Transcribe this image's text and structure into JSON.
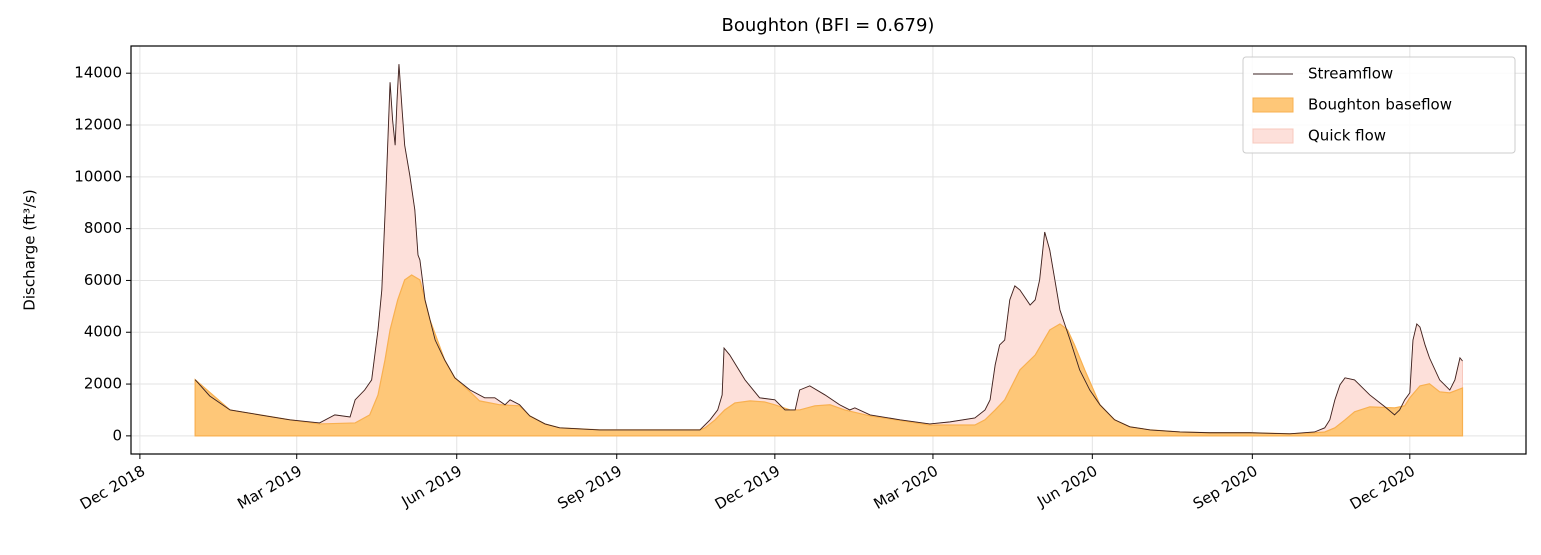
{
  "chart_data": {
    "type": "line",
    "title": "Boughton (BFI = 0.679)",
    "ylabel": "Discharge (ft³/s)",
    "xlim": [
      2018.901,
      2021.098
    ],
    "ylim": [
      -700,
      15050
    ],
    "xticks": [
      {
        "value": 2018.915,
        "label": "Dec 2018"
      },
      {
        "value": 2019.162,
        "label": "Mar 2019"
      },
      {
        "value": 2019.414,
        "label": "Jun 2019"
      },
      {
        "value": 2019.666,
        "label": "Sep 2019"
      },
      {
        "value": 2019.915,
        "label": "Dec 2019"
      },
      {
        "value": 2020.164,
        "label": "Mar 2020"
      },
      {
        "value": 2020.415,
        "label": "Jun 2020"
      },
      {
        "value": 2020.667,
        "label": "Sep 2020"
      },
      {
        "value": 2020.915,
        "label": "Dec 2020"
      }
    ],
    "yticks": [
      0,
      2000,
      4000,
      6000,
      8000,
      10000,
      12000,
      14000
    ],
    "grid": true,
    "legend": "upper right",
    "series": [
      {
        "name": "Streamflow",
        "color": "#3b2220",
        "x": [
          2019.002,
          2019.025,
          2019.057,
          2019.104,
          2019.151,
          2019.198,
          2019.222,
          2019.246,
          2019.254,
          2019.269,
          2019.28,
          2019.29,
          2019.296,
          2019.302,
          2019.309,
          2019.313,
          2019.317,
          2019.32,
          2019.323,
          2019.328,
          2019.332,
          2019.34,
          2019.348,
          2019.353,
          2019.356,
          2019.364,
          2019.372,
          2019.38,
          2019.395,
          2019.411,
          2019.435,
          2019.458,
          2019.474,
          2019.49,
          2019.498,
          2019.513,
          2019.529,
          2019.553,
          2019.576,
          2019.639,
          2019.718,
          2019.797,
          2019.813,
          2019.825,
          2019.832,
          2019.835,
          2019.844,
          2019.868,
          2019.891,
          2019.915,
          2019.931,
          2019.947,
          2019.954,
          2019.97,
          2019.994,
          2020.017,
          2020.033,
          2020.041,
          2020.065,
          2020.112,
          2020.159,
          2020.191,
          2020.23,
          2020.246,
          2020.254,
          2020.262,
          2020.269,
          2020.277,
          2020.285,
          2020.293,
          2020.301,
          2020.317,
          2020.325,
          2020.332,
          2020.34,
          2020.348,
          2020.356,
          2020.364,
          2020.38,
          2020.395,
          2020.411,
          2020.427,
          2020.45,
          2020.474,
          2020.506,
          2020.553,
          2020.6,
          2020.663,
          2020.726,
          2020.765,
          2020.781,
          2020.789,
          2020.797,
          2020.805,
          2020.813,
          2020.828,
          2020.852,
          2020.876,
          2020.891,
          2020.899,
          2020.907,
          2020.915,
          2020.92,
          2020.926,
          2020.931,
          2020.939,
          2020.946,
          2020.962,
          2020.978,
          2020.986,
          2020.994,
          2020.998
        ],
        "values": [
          2170,
          1540,
          1000,
          810,
          620,
          500,
          810,
          730,
          1390,
          1770,
          2160,
          4090,
          5630,
          9100,
          13650,
          12190,
          11220,
          12960,
          14350,
          12570,
          11220,
          10070,
          8720,
          6980,
          6790,
          5250,
          4470,
          3700,
          2930,
          2240,
          1770,
          1470,
          1470,
          1200,
          1390,
          1200,
          770,
          460,
          310,
          230,
          230,
          230,
          620,
          1000,
          1580,
          3390,
          3120,
          2160,
          1470,
          1390,
          1000,
          1000,
          1770,
          1930,
          1580,
          1200,
          1000,
          1080,
          810,
          620,
          460,
          540,
          690,
          1000,
          1390,
          2740,
          3510,
          3700,
          5250,
          5790,
          5630,
          5050,
          5250,
          6020,
          7870,
          7170,
          6020,
          4860,
          3700,
          2550,
          1770,
          1200,
          620,
          350,
          230,
          150,
          120,
          120,
          80,
          150,
          310,
          620,
          1390,
          1970,
          2240,
          2160,
          1580,
          1120,
          810,
          1000,
          1390,
          1660,
          3700,
          4320,
          4200,
          3510,
          3010,
          2160,
          1770,
          2160,
          3010,
          2890
        ]
      },
      {
        "name": "Boughton baseflow",
        "color": "#fec778",
        "x": [
          2019.002,
          2019.057,
          2019.151,
          2019.198,
          2019.254,
          2019.277,
          2019.29,
          2019.301,
          2019.309,
          2019.321,
          2019.332,
          2019.343,
          2019.356,
          2019.372,
          2019.395,
          2019.411,
          2019.435,
          2019.45,
          2019.482,
          2019.513,
          2019.529,
          2019.553,
          2019.576,
          2019.639,
          2019.797,
          2019.805,
          2019.821,
          2019.836,
          2019.852,
          2019.876,
          2019.899,
          2019.915,
          2019.939,
          2019.954,
          2019.978,
          2020.002,
          2020.025,
          2020.065,
          2020.159,
          2020.23,
          2020.246,
          2020.262,
          2020.277,
          2020.301,
          2020.325,
          2020.348,
          2020.364,
          2020.376,
          2020.387,
          2020.403,
          2020.427,
          2020.45,
          2020.474,
          2020.506,
          2020.553,
          2020.6,
          2020.663,
          2020.726,
          2020.765,
          2020.781,
          2020.797,
          2020.813,
          2020.828,
          2020.852,
          2020.891,
          2020.907,
          2020.915,
          2020.931,
          2020.946,
          2020.962,
          2020.978,
          2020.998
        ],
        "values": [
          2170,
          1000,
          620,
          460,
          500,
          810,
          1580,
          2930,
          4090,
          5250,
          6020,
          6210,
          6020,
          4470,
          2930,
          2240,
          1700,
          1350,
          1200,
          1160,
          770,
          460,
          310,
          230,
          230,
          310,
          620,
          1000,
          1270,
          1350,
          1310,
          1200,
          1000,
          1000,
          1160,
          1200,
          1000,
          770,
          420,
          420,
          620,
          1000,
          1390,
          2550,
          3120,
          4090,
          4320,
          4090,
          3510,
          2550,
          1200,
          620,
          350,
          230,
          150,
          120,
          120,
          80,
          120,
          150,
          310,
          620,
          930,
          1120,
          1080,
          1160,
          1470,
          1930,
          2010,
          1700,
          1660,
          1850
        ]
      },
      {
        "name": "Quick flow",
        "color": "#fde0da"
      }
    ]
  }
}
